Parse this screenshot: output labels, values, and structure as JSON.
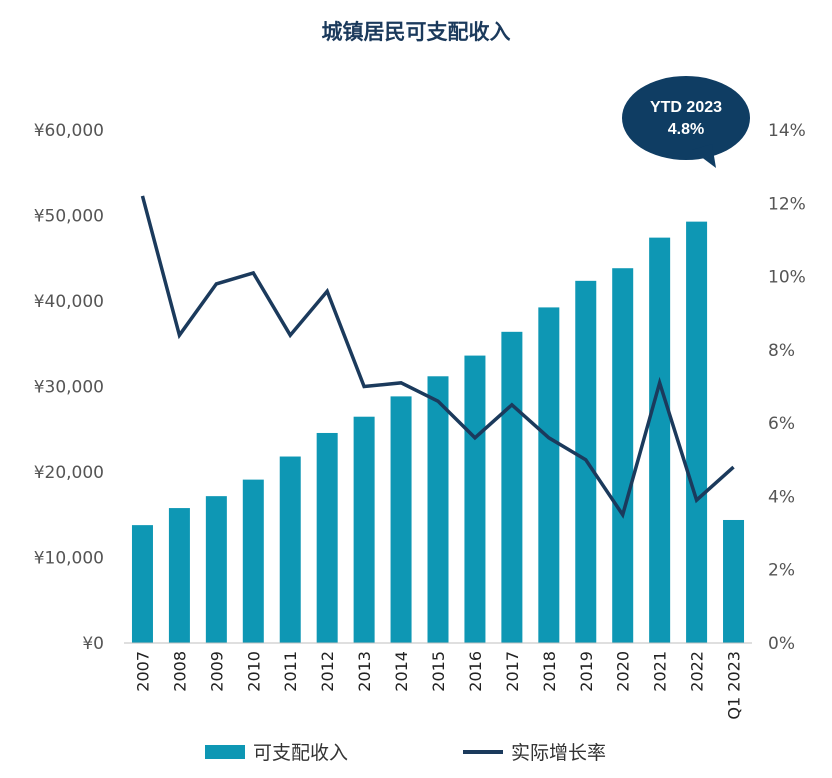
{
  "title": "城镇居民可支配收入",
  "colors": {
    "bar": "#0e97b4",
    "line": "#1b3a5c",
    "bubble": "#0f3d63"
  },
  "callout": {
    "line1": "YTD 2023",
    "line2": "4.8%"
  },
  "legend": {
    "bar_label": "可支配收入",
    "line_label": "实际增长率"
  },
  "chart_data": {
    "type": "bar",
    "categories": [
      "2007",
      "2008",
      "2009",
      "2010",
      "2011",
      "2012",
      "2013",
      "2014",
      "2015",
      "2016",
      "2017",
      "2018",
      "2019",
      "2020",
      "2021",
      "2022",
      "Q1 2023"
    ],
    "series": [
      {
        "name": "可支配收入",
        "type": "bar",
        "axis": "left",
        "values": [
          13786,
          15781,
          17175,
          19109,
          21810,
          24565,
          26467,
          28844,
          31195,
          33616,
          36396,
          39251,
          42359,
          43834,
          47412,
          49283,
          14388
        ]
      },
      {
        "name": "实际增长率",
        "type": "line",
        "axis": "right",
        "values": [
          12.2,
          8.4,
          9.8,
          10.1,
          8.4,
          9.6,
          7.0,
          7.1,
          6.6,
          5.6,
          6.5,
          5.6,
          5.0,
          3.5,
          7.1,
          3.9,
          4.8
        ]
      }
    ],
    "left_axis": {
      "ylim": [
        0,
        60000
      ],
      "ticks": [
        "¥0",
        "¥10,000",
        "¥20,000",
        "¥30,000",
        "¥40,000",
        "¥50,000",
        "¥60,000"
      ]
    },
    "right_axis": {
      "ylim": [
        0,
        14
      ],
      "ticks": [
        "0%",
        "2%",
        "4%",
        "6%",
        "8%",
        "10%",
        "12%",
        "14%"
      ]
    },
    "grid": false,
    "legend_position": "bottom"
  }
}
